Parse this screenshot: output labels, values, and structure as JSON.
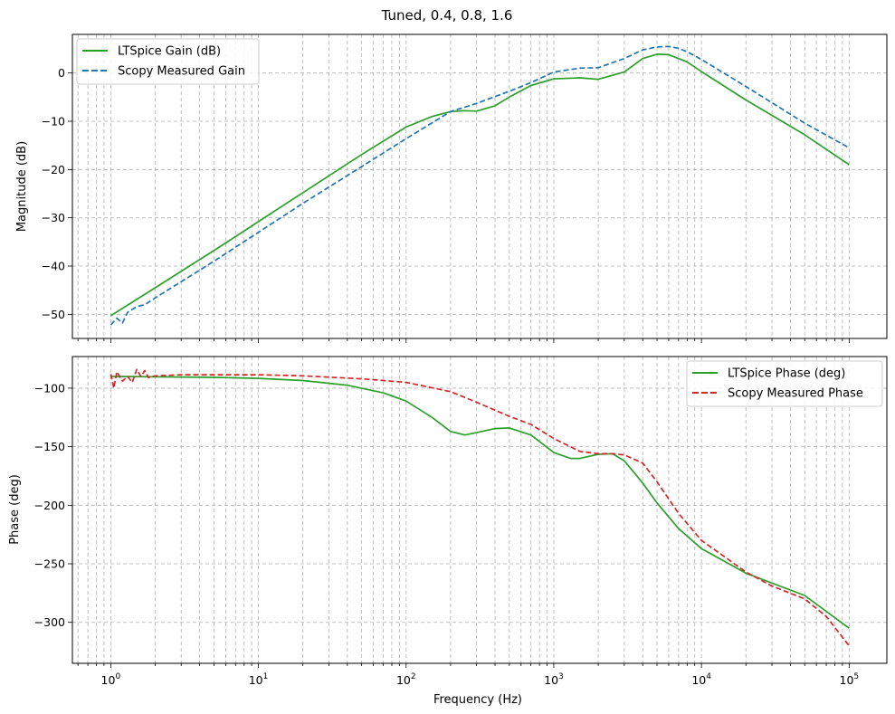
{
  "figure_title": "Tuned, 0.4, 0.8, 1.6",
  "chart_data": [
    {
      "type": "line",
      "panel": "magnitude",
      "title": "",
      "xlabel": "",
      "ylabel": "Magnitude (dB)",
      "xscale": "log",
      "xlim": [
        0.55,
        180000
      ],
      "ylim": [
        -55,
        8
      ],
      "yticks": [
        0,
        -10,
        -20,
        -30,
        -40,
        -50
      ],
      "ytick_labels": [
        "0",
        "−10",
        "−20",
        "−30",
        "−40",
        "−50"
      ],
      "grid": true,
      "legend_position": "top-left",
      "series": [
        {
          "name": "LTSpice Gain (dB)",
          "color": "#2ca02c",
          "dash": "solid",
          "x": [
            1,
            2,
            5,
            10,
            20,
            50,
            100,
            150,
            200,
            250,
            300,
            400,
            500,
            700,
            1000,
            1500,
            2000,
            3000,
            4000,
            5000,
            6000,
            8000,
            10000,
            20000,
            50000,
            100000
          ],
          "y": [
            -50.3,
            -44.5,
            -36.8,
            -30.8,
            -24.8,
            -16.9,
            -11.2,
            -9.0,
            -8.0,
            -7.8,
            -7.9,
            -6.8,
            -5.0,
            -2.6,
            -1.2,
            -1.0,
            -1.3,
            0.2,
            3.0,
            3.9,
            3.8,
            2.3,
            0.3,
            -5.6,
            -12.8,
            -19.0
          ]
        },
        {
          "name": "Scopy Measured Gain",
          "color": "#1f77b4",
          "dash": "dashed",
          "x": [
            1,
            1.1,
            1.2,
            1.3,
            1.5,
            1.7,
            2,
            5,
            10,
            20,
            50,
            100,
            200,
            300,
            500,
            700,
            1000,
            1500,
            2000,
            3000,
            4000,
            5000,
            6000,
            7000,
            8000,
            10000,
            20000,
            50000,
            100000
          ],
          "y": [
            -52.2,
            -50.8,
            -51.8,
            -49.6,
            -48.4,
            -48.0,
            -46.6,
            -39.0,
            -33.0,
            -27.0,
            -19.4,
            -13.6,
            -8.0,
            -6.3,
            -3.8,
            -2.0,
            0.2,
            1.0,
            1.1,
            3.0,
            4.8,
            5.4,
            5.5,
            5.1,
            4.4,
            2.8,
            -2.8,
            -10.4,
            -15.5
          ]
        }
      ]
    },
    {
      "type": "line",
      "panel": "phase",
      "title": "",
      "xlabel": "Frequency (Hz)",
      "ylabel": "Phase (deg)",
      "xscale": "log",
      "xlim": [
        0.55,
        180000
      ],
      "ylim": [
        -335,
        -73
      ],
      "xticks": [
        1,
        10,
        100,
        1000,
        10000,
        100000
      ],
      "xtick_labels": [
        "10^0",
        "10^1",
        "10^2",
        "10^3",
        "10^4",
        "10^5"
      ],
      "yticks": [
        -100,
        -150,
        -200,
        -250,
        -300
      ],
      "ytick_labels": [
        "−100",
        "−150",
        "−200",
        "−250",
        "−300"
      ],
      "grid": true,
      "legend_position": "top-right",
      "series": [
        {
          "name": "LTSpice Phase (deg)",
          "color": "#2ca02c",
          "dash": "solid",
          "x": [
            1,
            2,
            5,
            10,
            20,
            40,
            70,
            100,
            150,
            200,
            250,
            300,
            400,
            500,
            700,
            1000,
            1300,
            1500,
            2000,
            2500,
            3000,
            4000,
            5000,
            7000,
            10000,
            20000,
            50000,
            100000
          ],
          "y": [
            -90,
            -90.3,
            -90.8,
            -91.6,
            -93.5,
            -97.5,
            -104,
            -111,
            -125,
            -137,
            -140,
            -138,
            -134.5,
            -134,
            -140,
            -155,
            -160,
            -160,
            -156.5,
            -156,
            -162,
            -181,
            -198,
            -220,
            -237,
            -258,
            -277,
            -305
          ]
        },
        {
          "name": "Scopy Measured Phase",
          "color": "#d62728",
          "dash": "dashed",
          "x": [
            1,
            1.05,
            1.1,
            1.2,
            1.3,
            1.4,
            1.5,
            1.6,
            1.7,
            1.8,
            2,
            3,
            5,
            10,
            20,
            50,
            100,
            200,
            300,
            500,
            700,
            1000,
            1500,
            2000,
            2500,
            3000,
            4000,
            5000,
            7000,
            10000,
            20000,
            30000,
            50000,
            70000,
            100000
          ],
          "y": [
            -88,
            -100,
            -86,
            -94,
            -90,
            -95,
            -84,
            -90,
            -85,
            -91,
            -89.5,
            -88.5,
            -88.5,
            -88.5,
            -89.5,
            -92,
            -95,
            -103,
            -112,
            -124,
            -131,
            -143,
            -154,
            -156,
            -156,
            -157,
            -164,
            -180,
            -207,
            -230,
            -257,
            -269,
            -280,
            -295,
            -320
          ]
        }
      ]
    }
  ]
}
